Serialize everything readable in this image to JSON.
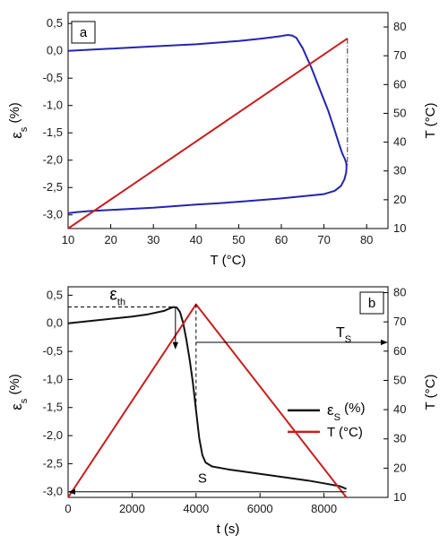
{
  "chart_data": [
    {
      "type": "line",
      "panel_label": "a",
      "xlabel": "T (°C)",
      "ylabel_main": "ε",
      "ylabel_sub": "s",
      "ylabel_unit": "(%)",
      "y2label": "T (°C)",
      "xlim": [
        10,
        85
      ],
      "ylim": [
        -3.25,
        0.7
      ],
      "y2lim": [
        10,
        85
      ],
      "xticks": [
        10,
        20,
        30,
        40,
        50,
        60,
        70,
        80
      ],
      "yticks": [
        0.5,
        0.0,
        -0.5,
        -1.0,
        -1.5,
        -2.0,
        -2.5,
        -3.0
      ],
      "ytick_labels": [
        "0,5",
        "0,0",
        "-0,5",
        "-1,0",
        "-1,5",
        "-2,0",
        "-2,5",
        "-3,0"
      ],
      "y2ticks": [
        10,
        20,
        30,
        40,
        50,
        60,
        70,
        80
      ],
      "series": [
        {
          "color": "#2424b0",
          "axis": "left",
          "x": [
            10,
            20,
            30,
            40,
            50,
            55,
            58,
            60,
            61.5,
            62.5,
            63.5,
            65,
            67,
            69,
            71,
            72.5,
            73.5,
            74.3,
            74.9,
            75.2,
            75.3,
            75.2,
            74.8,
            74,
            72.5,
            70,
            65,
            60,
            55,
            50,
            45,
            40,
            35,
            30,
            25,
            20,
            15,
            12,
            10
          ],
          "y": [
            0.0,
            0.04,
            0.08,
            0.12,
            0.18,
            0.22,
            0.25,
            0.27,
            0.29,
            0.28,
            0.24,
            0.05,
            -0.3,
            -0.7,
            -1.1,
            -1.45,
            -1.7,
            -1.88,
            -1.98,
            -2.05,
            -2.12,
            -2.22,
            -2.35,
            -2.47,
            -2.56,
            -2.62,
            -2.66,
            -2.7,
            -2.73,
            -2.76,
            -2.79,
            -2.81,
            -2.84,
            -2.87,
            -2.89,
            -2.91,
            -2.93,
            -2.95,
            -2.97
          ]
        },
        {
          "color": "#c81e1e",
          "axis": "right",
          "x": [
            10,
            75.5
          ],
          "y": [
            10,
            76
          ]
        }
      ],
      "dashed_marker": {
        "x": 75.5,
        "y2_top": 76
      }
    },
    {
      "type": "line",
      "panel_label": "b",
      "xlabel": "t (s)",
      "ylabel_main": "ε",
      "ylabel_sub": "s",
      "ylabel_unit": "(%)",
      "y2label": "T (°C)",
      "xlim": [
        0,
        10000
      ],
      "ylim": [
        -3.1,
        0.65
      ],
      "y2lim": [
        10,
        82
      ],
      "xticks": [
        0,
        2000,
        4000,
        6000,
        8000
      ],
      "yticks": [
        0.5,
        0.0,
        -0.5,
        -1.0,
        -1.5,
        -2.0,
        -2.5,
        -3.0
      ],
      "ytick_labels": [
        "0,5",
        "0,0",
        "-0,5",
        "-1,0",
        "-1,5",
        "-2,0",
        "-2,5",
        "-3,0"
      ],
      "y2ticks": [
        10,
        20,
        30,
        40,
        50,
        60,
        70,
        80
      ],
      "series": [
        {
          "name": "εs (%)",
          "legend_main": "ε",
          "legend_sub": "S",
          "legend_unit": "(%)",
          "color": "#111111",
          "axis": "left",
          "x": [
            0,
            500,
            1000,
            1500,
            2000,
            2500,
            3000,
            3200,
            3300,
            3400,
            3500,
            3600,
            3700,
            3800,
            3900,
            4000,
            4100,
            4200,
            4300,
            4500,
            5000,
            5500,
            6000,
            6500,
            7000,
            7500,
            8000,
            8500,
            8700
          ],
          "y": [
            0.0,
            0.03,
            0.06,
            0.09,
            0.12,
            0.16,
            0.22,
            0.27,
            0.29,
            0.28,
            0.2,
            0.0,
            -0.3,
            -0.65,
            -1.05,
            -1.55,
            -2.05,
            -2.35,
            -2.48,
            -2.55,
            -2.6,
            -2.64,
            -2.68,
            -2.72,
            -2.76,
            -2.8,
            -2.85,
            -2.9,
            -2.95
          ]
        },
        {
          "name": "T (°C)",
          "color": "#c81e1e",
          "axis": "right",
          "x": [
            0,
            4000,
            8700
          ],
          "y": [
            10,
            76,
            10
          ]
        }
      ],
      "annotations": {
        "eps_th_main": "ε",
        "eps_th_sub": "th",
        "eps_th_value": 0.29,
        "eps_th_x": 3300,
        "Ts_main": "T",
        "Ts_sub": "S",
        "Ts_y2": 63,
        "Ts_x_start": 4000,
        "S_label": "S",
        "S_y": -3.0,
        "S_x_end": 8700,
        "peak_x": 4000,
        "peak_y2": 76
      }
    }
  ]
}
